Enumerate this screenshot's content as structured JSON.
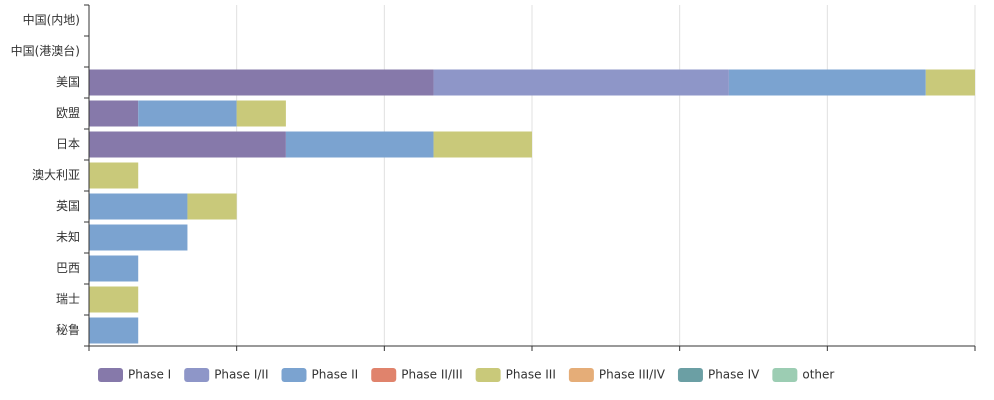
{
  "chart_data": {
    "type": "bar",
    "orientation": "horizontal",
    "stacked": true,
    "categories": [
      "中国(内地)",
      "中国(港澳台)",
      "美国",
      "欧盟",
      "日本",
      "澳大利亚",
      "英国",
      "未知",
      "巴西",
      "瑞士",
      "秘鲁"
    ],
    "series": [
      {
        "name": "Phase I",
        "color": "#8679aa",
        "values": [
          0,
          0,
          7,
          1,
          4,
          0,
          0,
          0,
          0,
          0,
          0
        ]
      },
      {
        "name": "Phase I/II",
        "color": "#8e96c8",
        "values": [
          0,
          0,
          6,
          0,
          0,
          0,
          0,
          0,
          0,
          0,
          0
        ]
      },
      {
        "name": "Phase II",
        "color": "#7ba3d0",
        "values": [
          0,
          0,
          4,
          2,
          3,
          0,
          2,
          2,
          1,
          0,
          1
        ]
      },
      {
        "name": "Phase II/III",
        "color": "#e0836c",
        "values": [
          0,
          0,
          0,
          0,
          0,
          0,
          0,
          0,
          0,
          0,
          0
        ]
      },
      {
        "name": "Phase III",
        "color": "#c9c97a",
        "values": [
          0,
          0,
          1,
          1,
          2,
          1,
          1,
          0,
          0,
          1,
          0
        ]
      },
      {
        "name": "Phase III/IV",
        "color": "#e5ad78",
        "values": [
          0,
          0,
          0,
          0,
          0,
          0,
          0,
          0,
          0,
          0,
          0
        ]
      },
      {
        "name": "Phase IV",
        "color": "#6b9fa4",
        "values": [
          0,
          0,
          0,
          0,
          0,
          0,
          0,
          0,
          0,
          0,
          0
        ]
      },
      {
        "name": "other",
        "color": "#9ccdb3",
        "values": [
          0,
          0,
          0,
          0,
          0,
          0,
          0,
          0,
          0,
          0,
          0
        ]
      }
    ],
    "xlim": [
      0,
      18
    ],
    "grid": true,
    "legend_position": "bottom-left"
  }
}
